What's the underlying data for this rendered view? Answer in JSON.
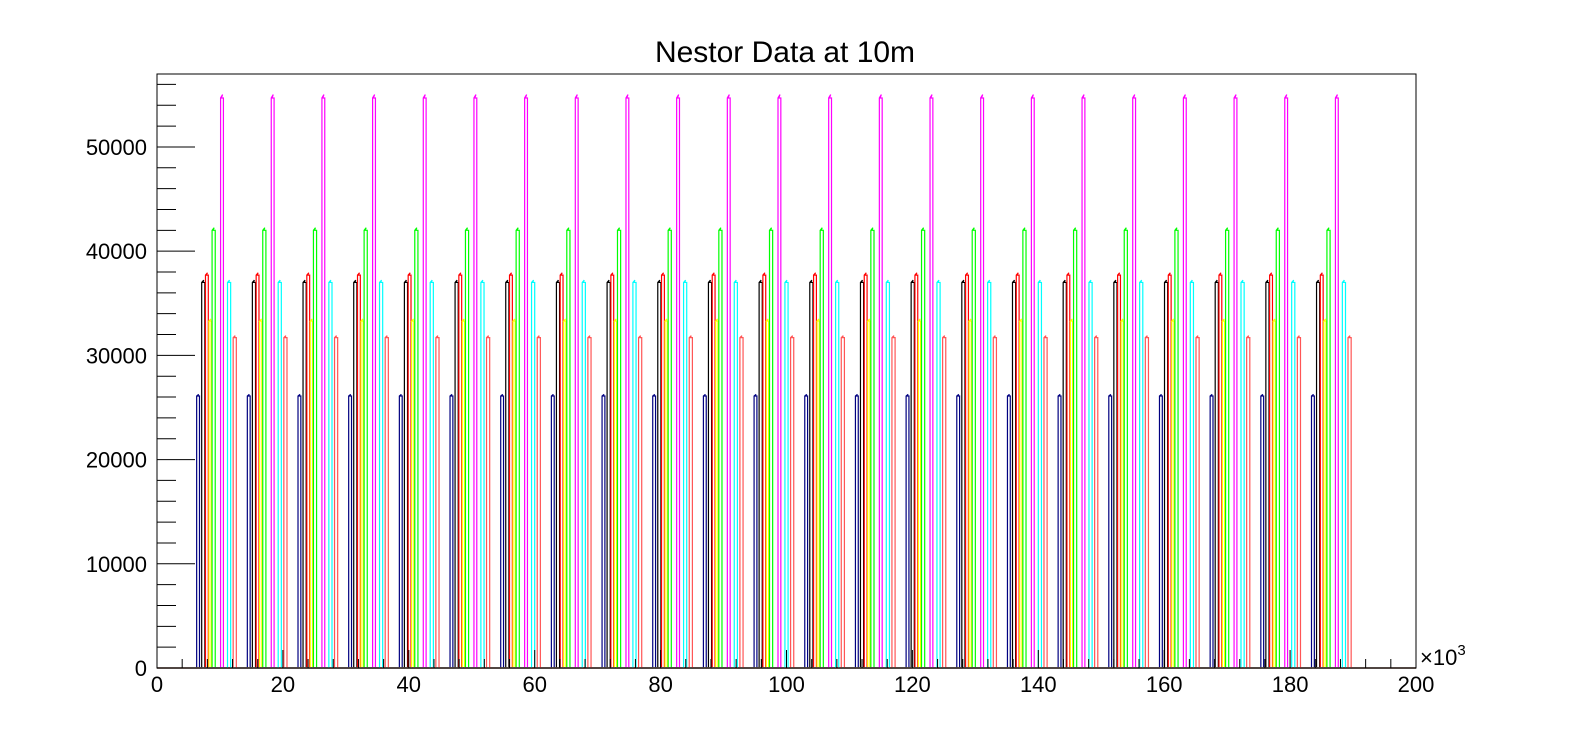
{
  "chart_data": {
    "type": "line",
    "title": "Nestor Data at 10m",
    "xlabel": "",
    "ylabel": "",
    "x_exponent_label": "×10",
    "x_exponent_power": "3",
    "xlim": [
      0,
      200
    ],
    "ylim": [
      0,
      57000
    ],
    "x_ticks": [
      0,
      20,
      40,
      60,
      80,
      100,
      120,
      140,
      160,
      180,
      200
    ],
    "y_ticks": [
      0,
      10000,
      20000,
      30000,
      40000,
      50000
    ],
    "x_tick_labels": [
      "0",
      "20",
      "40",
      "60",
      "80",
      "100",
      "120",
      "140",
      "160",
      "180",
      "200"
    ],
    "y_tick_labels": [
      "0",
      "10000",
      "20000",
      "30000",
      "40000",
      "50000"
    ],
    "grid": false,
    "legend": "none",
    "cycle_period": 8.05,
    "cycle_count": 23,
    "first_cycle_start": 5.5,
    "background_level": 0,
    "series": [
      {
        "color": "#000080",
        "level": 26100,
        "offset": 0.8,
        "width": 0.45
      },
      {
        "color": "#000000",
        "level": 37000,
        "offset": 1.6,
        "width": 0.5
      },
      {
        "color": "#ff0000",
        "level": 37700,
        "offset": 2.2,
        "width": 0.45
      },
      {
        "color": "#ffff00",
        "level": 33300,
        "offset": 2.75,
        "width": 0.35
      },
      {
        "color": "#00ff00",
        "level": 42000,
        "offset": 3.25,
        "width": 0.5
      },
      {
        "color": "#ff00ff",
        "level": 54700,
        "offset": 4.6,
        "width": 0.45
      },
      {
        "color": "#00ffff",
        "level": 37000,
        "offset": 5.7,
        "width": 0.5
      },
      {
        "color": "#ff5555",
        "level": 31700,
        "offset": 6.6,
        "width": 0.5
      }
    ]
  }
}
